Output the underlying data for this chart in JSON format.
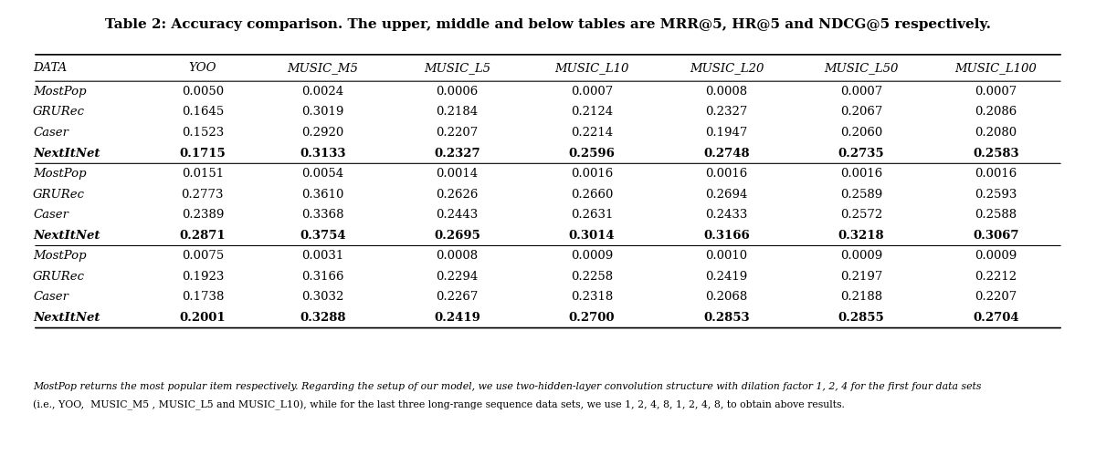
{
  "title": "Table 2: Accuracy comparison. The upper, middle and below tables are MRR@5, HR@5 and NDCG@5 respectively.",
  "columns": [
    "DATA",
    "YOO",
    "MUSIC_M5",
    "MUSIC_L5",
    "MUSIC_L10",
    "MUSIC_L20",
    "MUSIC_L50",
    "MUSIC_L100"
  ],
  "col_labels": [
    "DATA",
    "YOO",
    "MUSIC_M5",
    "MUSIC_L5",
    "MUSIC_L10",
    "MUSIC_L20",
    "MUSIC_L50",
    "MUSIC_L100"
  ],
  "sections": [
    {
      "rows": [
        {
          "name": "MostPop",
          "italic": true,
          "bold": false,
          "values": [
            "0.0050",
            "0.0024",
            "0.0006",
            "0.0007",
            "0.0008",
            "0.0007",
            "0.0007"
          ]
        },
        {
          "name": "GRURec",
          "italic": true,
          "bold": false,
          "values": [
            "0.1645",
            "0.3019",
            "0.2184",
            "0.2124",
            "0.2327",
            "0.2067",
            "0.2086"
          ]
        },
        {
          "name": "Caser",
          "italic": true,
          "bold": false,
          "values": [
            "0.1523",
            "0.2920",
            "0.2207",
            "0.2214",
            "0.1947",
            "0.2060",
            "0.2080"
          ]
        },
        {
          "name": "NextItNet",
          "italic": true,
          "bold": true,
          "values": [
            "0.1715",
            "0.3133",
            "0.2327",
            "0.2596",
            "0.2748",
            "0.2735",
            "0.2583"
          ]
        }
      ]
    },
    {
      "rows": [
        {
          "name": "MostPop",
          "italic": true,
          "bold": false,
          "values": [
            "0.0151",
            "0.0054",
            "0.0014",
            "0.0016",
            "0.0016",
            "0.0016",
            "0.0016"
          ]
        },
        {
          "name": "GRURec",
          "italic": true,
          "bold": false,
          "values": [
            "0.2773",
            "0.3610",
            "0.2626",
            "0.2660",
            "0.2694",
            "0.2589",
            "0.2593"
          ]
        },
        {
          "name": "Caser",
          "italic": true,
          "bold": false,
          "values": [
            "0.2389",
            "0.3368",
            "0.2443",
            "0.2631",
            "0.2433",
            "0.2572",
            "0.2588"
          ]
        },
        {
          "name": "NextItNet",
          "italic": true,
          "bold": true,
          "values": [
            "0.2871",
            "0.3754",
            "0.2695",
            "0.3014",
            "0.3166",
            "0.3218",
            "0.3067"
          ]
        }
      ]
    },
    {
      "rows": [
        {
          "name": "MostPop",
          "italic": true,
          "bold": false,
          "values": [
            "0.0075",
            "0.0031",
            "0.0008",
            "0.0009",
            "0.0010",
            "0.0009",
            "0.0009"
          ]
        },
        {
          "name": "GRURec",
          "italic": true,
          "bold": false,
          "values": [
            "0.1923",
            "0.3166",
            "0.2294",
            "0.2258",
            "0.2419",
            "0.2197",
            "0.2212"
          ]
        },
        {
          "name": "Caser",
          "italic": true,
          "bold": false,
          "values": [
            "0.1738",
            "0.3032",
            "0.2267",
            "0.2318",
            "0.2068",
            "0.2188",
            "0.2207"
          ]
        },
        {
          "name": "NextItNet",
          "italic": true,
          "bold": true,
          "values": [
            "0.2001",
            "0.3288",
            "0.2419",
            "0.2700",
            "0.2853",
            "0.2855",
            "0.2704"
          ]
        }
      ]
    }
  ],
  "footnote": "MostPop returns the most popular item respectively. Regarding the setup of our model, we use two-hidden-layer convolution structure with dilation factor 1, 2, 4 for the first four data sets\n(i.e., YOO,  MUSIC_M5 , MUSIC_L5 and MUSIC_L10), while for the last three long-range sequence data sets, we use 1, 2, 4, 8, 1, 2, 4, 8, to obtain above results.",
  "bg_color": "#ffffff",
  "text_color": "#000000"
}
